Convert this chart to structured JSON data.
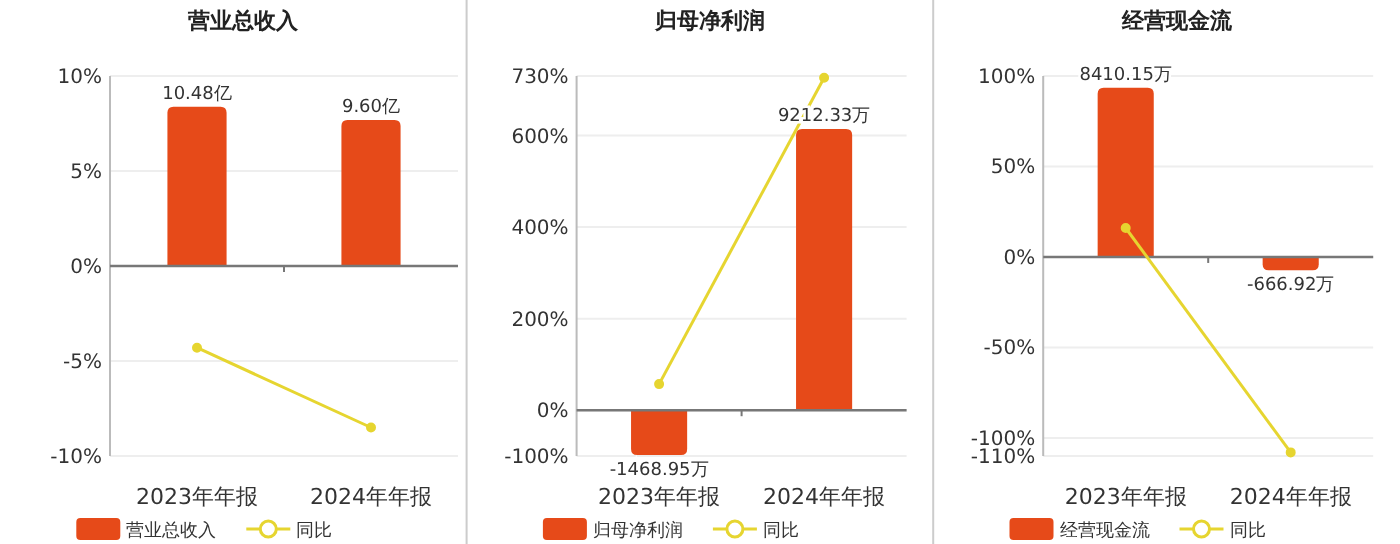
{
  "chart_data": [
    {
      "type": "bar",
      "title": "营业总收入",
      "categories": [
        "2023年年报",
        "2024年年报"
      ],
      "ylim": [
        -10,
        10
      ],
      "yticks": [
        {
          "value": -10,
          "label": "-10%"
        },
        {
          "value": -5,
          "label": "-5%"
        },
        {
          "value": 0,
          "label": "0%"
        },
        {
          "value": 5,
          "label": "5%"
        },
        {
          "value": 10,
          "label": "10%"
        }
      ],
      "y2lim": [
        -12.5,
        12.5
      ],
      "grid": "y",
      "legend": "bottom",
      "marker": "circle",
      "series": [
        {
          "name": "营业总收入",
          "axis": "y2",
          "color": "#e64a19",
          "values": [
            10.48,
            9.6
          ],
          "value_labels": [
            "10.48亿",
            "9.60亿"
          ]
        },
        {
          "name": "同比",
          "type": "line",
          "color": "#e6d530",
          "values": [
            -4.3,
            -8.5
          ]
        }
      ]
    },
    {
      "type": "bar",
      "title": "归母净利润",
      "categories": [
        "2023年年报",
        "2024年年报"
      ],
      "ylim": [
        -100,
        730
      ],
      "yticks": [
        {
          "value": -100,
          "label": "-100%"
        },
        {
          "value": 0,
          "label": "0%"
        },
        {
          "value": 200,
          "label": "200%"
        },
        {
          "value": 400,
          "label": "400%"
        },
        {
          "value": 600,
          "label": "600%"
        },
        {
          "value": 730,
          "label": "730%"
        }
      ],
      "y2lim": [
        -1500,
        10950
      ],
      "grid": "y",
      "legend": "bottom",
      "marker": "circle",
      "series": [
        {
          "name": "归母净利润",
          "axis": "y2",
          "color": "#e64a19",
          "values": [
            -1468.95,
            9212.33
          ],
          "value_labels": [
            "-1468.95万",
            "9212.33万"
          ]
        },
        {
          "name": "同比",
          "type": "line",
          "color": "#e6d530",
          "values": [
            57,
            726
          ]
        }
      ]
    },
    {
      "type": "bar",
      "title": "经营现金流",
      "categories": [
        "2023年年报",
        "2024年年报"
      ],
      "ylim": [
        -110,
        100
      ],
      "yticks": [
        {
          "value": -110,
          "label": "-110%"
        },
        {
          "value": -100,
          "label": "-100%"
        },
        {
          "value": -50,
          "label": "-50%"
        },
        {
          "value": 0,
          "label": "0%"
        },
        {
          "value": 50,
          "label": "50%"
        },
        {
          "value": 100,
          "label": "100%"
        }
      ],
      "y2lim": [
        -9900,
        9000
      ],
      "grid": "y",
      "legend": "bottom",
      "marker": "circle",
      "series": [
        {
          "name": "经营现金流",
          "axis": "y2",
          "color": "#e64a19",
          "values": [
            8410.15,
            -666.92
          ],
          "value_labels": [
            "8410.15万",
            "-666.92万"
          ]
        },
        {
          "name": "同比",
          "type": "line",
          "color": "#e6d530",
          "values": [
            16,
            -108
          ]
        }
      ]
    }
  ]
}
